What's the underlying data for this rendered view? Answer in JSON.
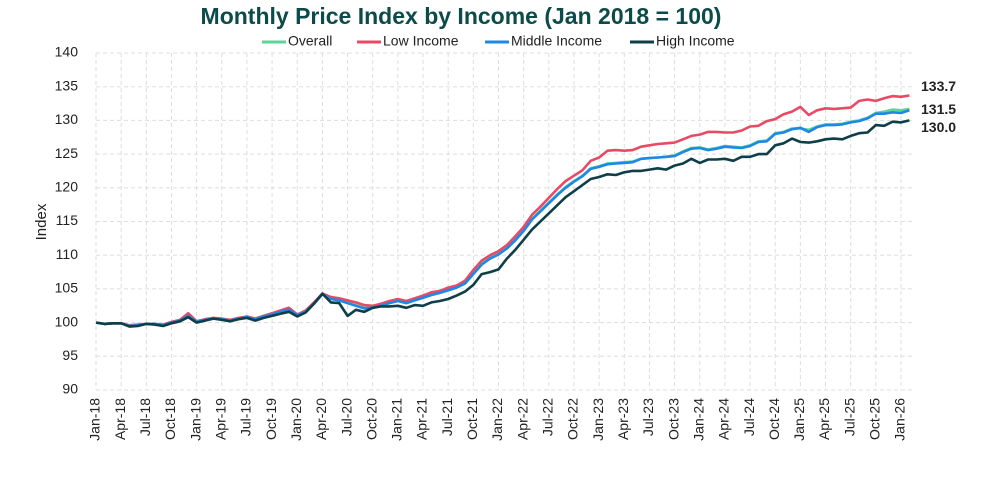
{
  "chart_data": {
    "type": "line",
    "title": "Monthly Price Index by Income (Jan 2018 = 100)",
    "y_label": "Index",
    "categories": [
      "Jan-18",
      null,
      null,
      "Apr-18",
      null,
      null,
      "Jul-18",
      null,
      null,
      "Oct-18",
      null,
      null,
      "Jan-19",
      null,
      null,
      "Apr-19",
      null,
      null,
      "Jul-19",
      null,
      null,
      "Oct-19",
      null,
      null,
      "Jan-20",
      null,
      null,
      "Apr-20",
      null,
      null,
      "Jul-20",
      null,
      null,
      "Oct-20",
      null,
      null,
      "Jan-21",
      null,
      null,
      "Apr-21",
      null,
      null,
      "Jul-21",
      null,
      null,
      "Oct-21",
      null,
      null,
      "Jan-22",
      null,
      null,
      "Apr-22",
      null,
      null,
      "Jul-22",
      null,
      null,
      "Oct-22",
      null,
      null,
      "Jan-23",
      null,
      null,
      "Apr-23",
      null,
      null,
      "Jul-23",
      null,
      null,
      "Oct-23",
      null,
      null,
      "Jan-24",
      null,
      null,
      "Apr-24",
      null,
      null,
      "Jul-24",
      null,
      null,
      "Oct-24",
      null,
      null,
      "Jan-25",
      null,
      null,
      "Apr-25",
      null,
      null,
      "Jul-25",
      null,
      null,
      "Oct-25",
      null,
      null,
      "Jan-26",
      null
    ],
    "series": [
      {
        "name": "Overall",
        "color": "#5fd39a",
        "values": [
          100,
          99.8,
          99.9,
          99.9,
          99.5,
          99.6,
          99.8,
          99.8,
          99.6,
          100,
          100.3,
          101.1,
          100.1,
          100.4,
          100.6,
          100.5,
          100.3,
          100.6,
          100.8,
          100.6,
          101,
          101.3,
          101.6,
          102,
          101.1,
          101.7,
          102.9,
          104.2,
          103.6,
          103.3,
          103,
          102.6,
          102.2,
          102.3,
          102.6,
          103,
          103.2,
          102.9,
          103.3,
          103.7,
          104.1,
          104.4,
          104.8,
          105.2,
          105.8,
          107.3,
          108.7,
          109.6,
          110.2,
          111.1,
          112.3,
          113.7,
          115.4,
          116.6,
          117.8,
          119,
          120.1,
          121,
          121.8,
          122.9,
          123.2,
          123.6,
          123.7,
          123.8,
          123.9,
          124.3,
          124.4,
          124.5,
          124.6,
          124.8,
          125.4,
          125.9,
          126,
          125.7,
          125.9,
          126.2,
          126.1,
          126,
          126.3,
          126.9,
          127,
          128.1,
          128.3,
          128.8,
          128.8,
          128.6,
          129.1,
          129.4,
          129.4,
          129.5,
          129.8,
          130,
          130.4,
          131.1,
          131.3,
          131.6,
          131.5,
          131.7
        ]
      },
      {
        "name": "Low Income",
        "color": "#e84a64",
        "end_label": "133.7",
        "values": [
          100,
          99.8,
          99.9,
          99.9,
          99.6,
          99.7,
          99.8,
          99.8,
          99.7,
          100.1,
          100.4,
          101.4,
          100.2,
          100.5,
          100.7,
          100.6,
          100.4,
          100.7,
          100.9,
          100.6,
          101,
          101.4,
          101.8,
          102.2,
          101.2,
          101.8,
          103,
          104.3,
          103.8,
          103.6,
          103.3,
          103,
          102.6,
          102.5,
          102.8,
          103.2,
          103.5,
          103.2,
          103.6,
          104,
          104.5,
          104.7,
          105.2,
          105.5,
          106.2,
          107.8,
          109.2,
          110,
          110.6,
          111.5,
          112.8,
          114.2,
          116,
          117.2,
          118.5,
          119.8,
          121,
          121.8,
          122.6,
          124,
          124.5,
          125.5,
          125.6,
          125.5,
          125.6,
          126.1,
          126.3,
          126.5,
          126.6,
          126.7,
          127.2,
          127.7,
          127.9,
          128.3,
          128.3,
          128.2,
          128.2,
          128.5,
          129.1,
          129.2,
          129.9,
          130.2,
          130.9,
          131.3,
          132,
          130.8,
          131.5,
          131.8,
          131.7,
          131.8,
          131.9,
          132.9,
          133.1,
          132.9,
          133.3,
          133.6,
          133.5,
          133.7
        ]
      },
      {
        "name": "Middle Income",
        "color": "#1f87e5",
        "end_label": "131.5",
        "values": [
          100,
          99.8,
          99.9,
          99.9,
          99.5,
          99.6,
          99.8,
          99.8,
          99.6,
          100,
          100.3,
          101,
          100.1,
          100.4,
          100.6,
          100.5,
          100.3,
          100.6,
          100.8,
          100.5,
          100.9,
          101.2,
          101.6,
          101.9,
          101.1,
          101.6,
          102.8,
          104.2,
          103.5,
          103.3,
          102.9,
          102.5,
          102.1,
          102.2,
          102.5,
          102.9,
          103.2,
          102.9,
          103.3,
          103.7,
          104.1,
          104.4,
          104.8,
          105.2,
          105.8,
          107.2,
          108.6,
          109.5,
          110.1,
          111,
          112.2,
          113.6,
          115.3,
          116.5,
          117.7,
          118.9,
          120,
          120.9,
          121.7,
          122.8,
          123.1,
          123.5,
          123.6,
          123.7,
          123.8,
          124.3,
          124.4,
          124.5,
          124.6,
          124.7,
          125.3,
          125.8,
          125.9,
          125.6,
          125.8,
          126.1,
          126,
          125.9,
          126.2,
          126.8,
          126.9,
          128,
          128.2,
          128.7,
          128.9,
          128.3,
          129,
          129.3,
          129.3,
          129.4,
          129.7,
          129.9,
          130.3,
          131,
          131,
          131.2,
          131.1,
          131.5
        ]
      },
      {
        "name": "High Income",
        "color": "#0e3e48",
        "end_label": "130.0",
        "values": [
          100,
          99.8,
          99.9,
          99.9,
          99.4,
          99.5,
          99.8,
          99.7,
          99.5,
          99.9,
          100.2,
          100.8,
          100,
          100.3,
          100.6,
          100.4,
          100.2,
          100.5,
          100.7,
          100.3,
          100.7,
          101,
          101.3,
          101.6,
          100.9,
          101.5,
          102.8,
          104.3,
          103,
          102.9,
          101,
          101.9,
          101.6,
          102.2,
          102.4,
          102.4,
          102.5,
          102.2,
          102.6,
          102.5,
          103,
          103.2,
          103.5,
          104,
          104.6,
          105.6,
          107.2,
          107.5,
          107.9,
          109.5,
          110.8,
          112.3,
          113.8,
          115,
          116.2,
          117.4,
          118.6,
          119.5,
          120.4,
          121.3,
          121.6,
          122,
          121.9,
          122.3,
          122.5,
          122.5,
          122.7,
          122.9,
          122.7,
          123.3,
          123.6,
          124.3,
          123.7,
          124.2,
          124.2,
          124.3,
          124,
          124.6,
          124.6,
          125,
          125,
          126.3,
          126.6,
          127.3,
          126.8,
          126.7,
          126.9,
          127.2,
          127.3,
          127.2,
          127.7,
          128.1,
          128.2,
          129.3,
          129.2,
          129.8,
          129.7,
          130
        ]
      }
    ],
    "ylim": [
      90,
      140
    ],
    "yticks": [
      90,
      95,
      100,
      105,
      110,
      115,
      120,
      125,
      130,
      135,
      140
    ],
    "grid": true,
    "legend": "top"
  }
}
